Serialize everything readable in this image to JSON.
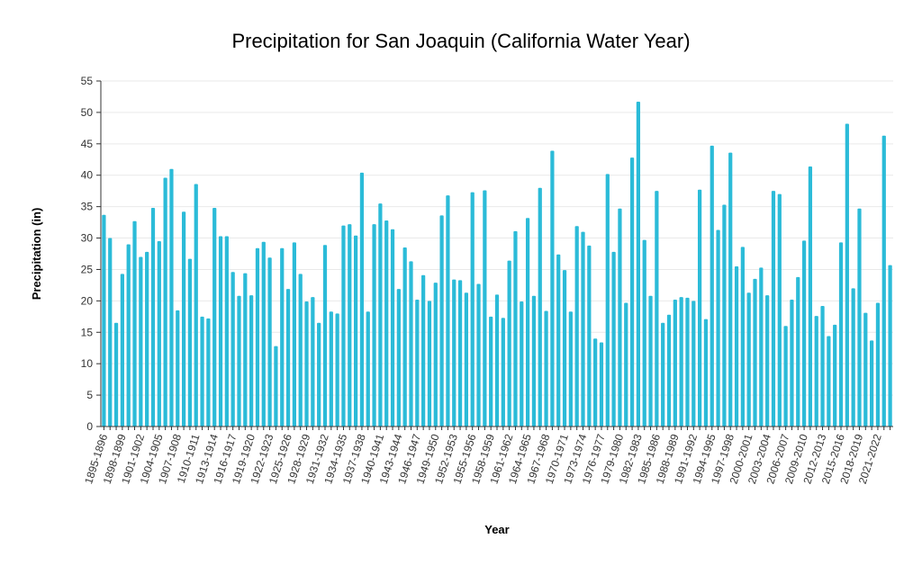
{
  "chart_data": {
    "type": "bar",
    "title": "Precipitation for San Joaquin (California Water Year)",
    "xlabel": "Year",
    "ylabel": "Precipitation (in)",
    "ylim": [
      0,
      55
    ],
    "yticks": [
      0,
      5,
      10,
      15,
      20,
      25,
      30,
      35,
      40,
      45,
      50,
      55
    ],
    "grid": true,
    "bar_color": "#2bbbd8",
    "categories": [
      "1895-1896",
      "1896-1897",
      "1897-1898",
      "1898-1899",
      "1899-1900",
      "1900-1901",
      "1901-1902",
      "1902-1903",
      "1903-1904",
      "1904-1905",
      "1905-1906",
      "1906-1907",
      "1907-1908",
      "1908-1909",
      "1909-1910",
      "1910-1911",
      "1911-1912",
      "1912-1913",
      "1913-1914",
      "1914-1915",
      "1915-1916",
      "1916-1917",
      "1917-1918",
      "1918-1919",
      "1919-1920",
      "1920-1921",
      "1921-1922",
      "1922-1923",
      "1923-1924",
      "1924-1925",
      "1925-1926",
      "1926-1927",
      "1927-1928",
      "1928-1929",
      "1929-1930",
      "1930-1931",
      "1931-1932",
      "1932-1933",
      "1933-1934",
      "1934-1935",
      "1935-1936",
      "1936-1937",
      "1937-1938",
      "1938-1939",
      "1939-1940",
      "1940-1941",
      "1941-1942",
      "1942-1943",
      "1943-1944",
      "1944-1945",
      "1945-1946",
      "1946-1947",
      "1947-1948",
      "1948-1949",
      "1949-1950",
      "1950-1951",
      "1951-1952",
      "1952-1953",
      "1953-1954",
      "1954-1955",
      "1955-1956",
      "1956-1957",
      "1957-1958",
      "1958-1959",
      "1959-1960",
      "1960-1961",
      "1961-1962",
      "1962-1963",
      "1963-1964",
      "1964-1965",
      "1965-1966",
      "1966-1967",
      "1967-1968",
      "1968-1969",
      "1969-1970",
      "1970-1971",
      "1971-1972",
      "1972-1973",
      "1973-1974",
      "1974-1975",
      "1975-1976",
      "1976-1977",
      "1977-1978",
      "1978-1979",
      "1979-1980",
      "1980-1981",
      "1981-1982",
      "1982-1983",
      "1983-1984",
      "1984-1985",
      "1985-1986",
      "1986-1987",
      "1987-1988",
      "1988-1989",
      "1989-1990",
      "1990-1991",
      "1991-1992",
      "1992-1993",
      "1993-1994",
      "1994-1995",
      "1995-1996",
      "1996-1997",
      "1997-1998",
      "1998-1999",
      "1999-2000",
      "2000-2001",
      "2001-2002",
      "2002-2003",
      "2003-2004",
      "2004-2005",
      "2005-2006",
      "2006-2007",
      "2007-2008",
      "2008-2009",
      "2009-2010",
      "2010-2011",
      "2011-2012",
      "2012-2013",
      "2013-2014",
      "2014-2015",
      "2015-2016",
      "2016-2017",
      "2017-2018",
      "2018-2019",
      "2019-2020",
      "2020-2021",
      "2021-2022",
      "2022-2023",
      "2023-2024"
    ],
    "values": [
      33.7,
      30.0,
      16.5,
      24.3,
      29.0,
      32.7,
      27.0,
      27.8,
      34.8,
      29.5,
      39.6,
      41.0,
      18.5,
      34.2,
      26.7,
      38.6,
      17.5,
      17.2,
      34.8,
      30.3,
      30.3,
      24.6,
      20.8,
      24.4,
      20.9,
      28.4,
      29.4,
      26.9,
      12.8,
      28.4,
      21.9,
      29.3,
      24.3,
      19.9,
      20.6,
      16.5,
      28.9,
      18.3,
      18.0,
      32.0,
      32.2,
      30.4,
      40.4,
      18.3,
      32.2,
      35.5,
      32.8,
      31.4,
      21.9,
      28.5,
      26.3,
      20.2,
      24.1,
      20.0,
      22.9,
      33.6,
      36.8,
      23.4,
      23.3,
      21.3,
      37.3,
      22.7,
      37.6,
      17.5,
      21.0,
      17.3,
      26.4,
      31.1,
      19.9,
      33.2,
      20.8,
      38.0,
      18.4,
      43.9,
      27.4,
      24.9,
      18.3,
      31.9,
      31.0,
      28.8,
      14.0,
      13.4,
      40.2,
      27.8,
      34.7,
      19.7,
      42.8,
      51.7,
      29.7,
      20.8,
      37.5,
      16.5,
      17.8,
      20.2,
      20.6,
      20.5,
      20.0,
      37.7,
      17.1,
      44.7,
      31.3,
      35.3,
      43.6,
      25.5,
      28.6,
      21.3,
      23.5,
      25.3,
      20.9,
      37.5,
      37.0,
      16.0,
      20.2,
      23.8,
      29.6,
      41.4,
      17.6,
      19.2,
      14.4,
      16.2,
      29.3,
      48.2,
      22.0,
      34.7,
      18.1,
      13.7,
      19.7,
      46.3,
      25.7
    ],
    "tick_label_every": 3
  }
}
